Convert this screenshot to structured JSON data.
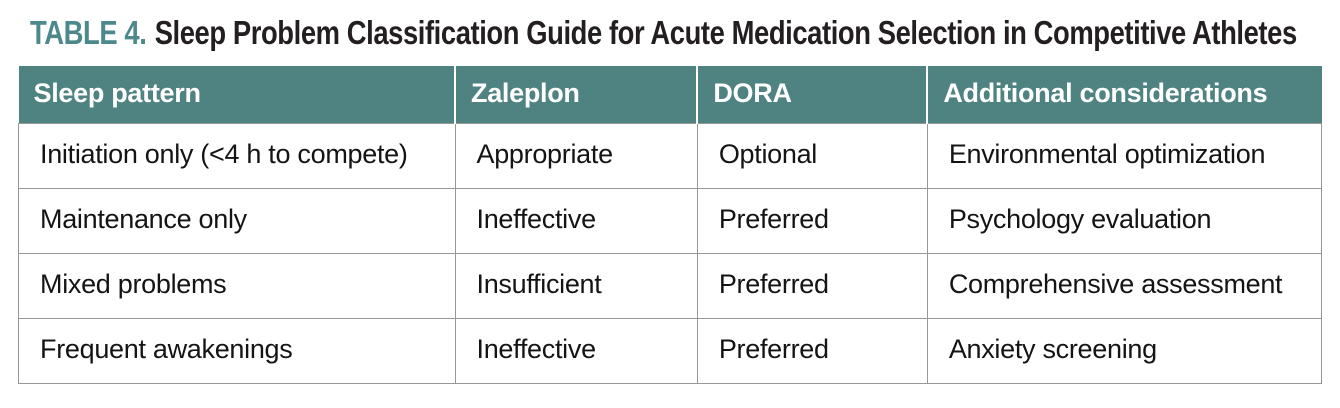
{
  "title": {
    "label": "TABLE 4.",
    "text": "Sleep Problem Classification Guide for Acute Medication Selection in Competitive Athletes"
  },
  "table": {
    "headers": [
      "Sleep pattern",
      "Zaleplon",
      "DORA",
      "Additional considerations"
    ],
    "rows": [
      [
        "Initiation only (<4 h to compete)",
        "Appropriate",
        "Optional",
        "Environmental optimization"
      ],
      [
        "Maintenance only",
        "Ineffective",
        "Preferred",
        "Psychology evaluation"
      ],
      [
        "Mixed problems",
        "Insufficient",
        "Preferred",
        "Comprehensive assessment"
      ],
      [
        "Frequent awakenings",
        "Ineffective",
        "Preferred",
        "Anxiety screening"
      ]
    ]
  },
  "colors": {
    "header_background": "#4e8381",
    "title_accent": "#4d898c",
    "title_text": "#231f20",
    "body_text": "#141414",
    "grid_border": "#979797",
    "header_divider": "#ffffff"
  }
}
